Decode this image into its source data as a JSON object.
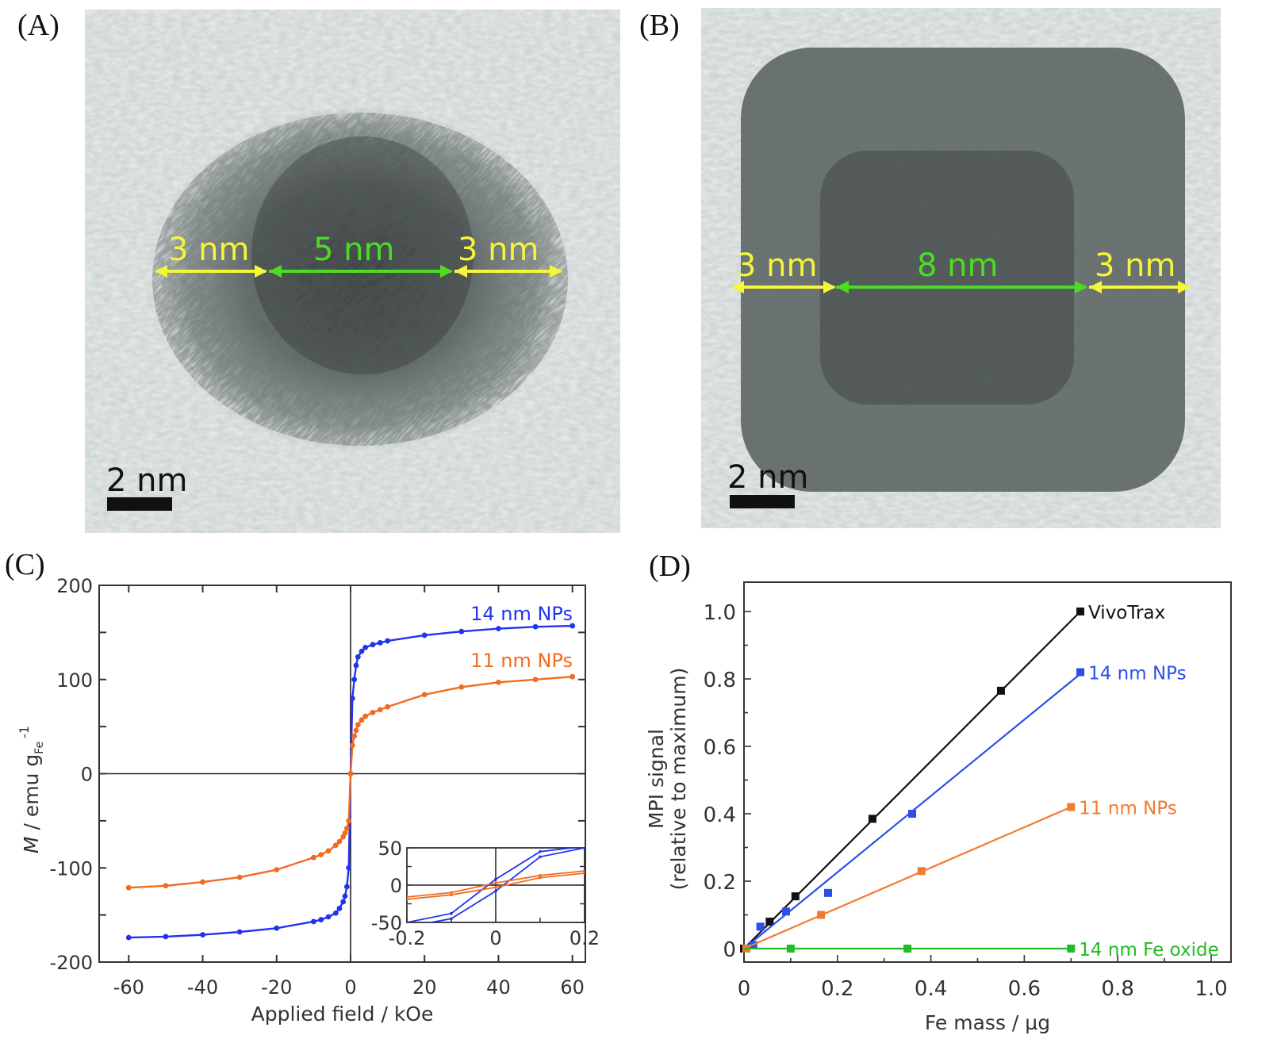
{
  "panels": {
    "a": {
      "label": "(A)",
      "scale_bar": "2 nm",
      "measurements": [
        {
          "text": "3 nm",
          "color": "#ffff33"
        },
        {
          "text": "5 nm",
          "color": "#44dd22"
        },
        {
          "text": "3 nm",
          "color": "#ffff33"
        }
      ]
    },
    "b": {
      "label": "(B)",
      "scale_bar": "2 nm",
      "measurements": [
        {
          "text": "3 nm",
          "color": "#ffff33"
        },
        {
          "text": "8 nm",
          "color": "#44dd22"
        },
        {
          "text": "3 nm",
          "color": "#ffff33"
        }
      ]
    },
    "c": {
      "label": "(C)"
    },
    "d": {
      "label": "(D)"
    }
  },
  "chart_data": [
    {
      "type": "line",
      "id": "C",
      "xlabel": "Applied field / kOe",
      "ylabel": "M / emu g_Fe^-1",
      "ylabel_parts": {
        "main": "M / emu g",
        "sub": "Fe",
        "sup": "-1"
      },
      "xlim": [
        -68,
        63.5
      ],
      "ylim": [
        -200,
        200
      ],
      "xticks": [
        -60,
        -40,
        -20,
        0,
        20,
        40,
        60
      ],
      "yticks": [
        -200,
        -100,
        0,
        100,
        200
      ],
      "grid": false,
      "series": [
        {
          "name": "14 nm NPs",
          "color": "#2233ee",
          "x": [
            -60,
            -50,
            -40,
            -30,
            -20,
            -10,
            -8,
            -6,
            -4,
            -3,
            -2,
            -1.5,
            -1,
            -0.5,
            0,
            0.5,
            1,
            1.5,
            2,
            3,
            4,
            6,
            8,
            10,
            20,
            30,
            40,
            50,
            60
          ],
          "y": [
            -174,
            -173,
            -171,
            -168,
            -164,
            -157,
            -155,
            -152,
            -148,
            -143,
            -136,
            -130,
            -120,
            -100,
            0,
            80,
            100,
            115,
            124,
            130,
            134,
            137,
            139,
            141,
            147,
            151,
            154,
            156,
            157
          ]
        },
        {
          "name": "11 nm NPs",
          "color": "#f26b21",
          "x": [
            -60,
            -50,
            -40,
            -30,
            -20,
            -10,
            -8,
            -6,
            -4,
            -3,
            -2,
            -1.5,
            -1,
            -0.5,
            0,
            0.5,
            1,
            1.5,
            2,
            3,
            4,
            6,
            8,
            10,
            20,
            30,
            40,
            50,
            60
          ],
          "y": [
            -121,
            -119,
            -115,
            -110,
            -102,
            -89,
            -86,
            -82,
            -76,
            -72,
            -67,
            -63,
            -58,
            -50,
            0,
            30,
            40,
            46,
            52,
            57,
            61,
            65,
            68,
            71,
            84,
            92,
            97,
            100,
            103
          ]
        }
      ],
      "annotations": [
        {
          "text": "14 nm NPs",
          "color": "#2233ee"
        },
        {
          "text": "11 nm NPs",
          "color": "#f26b21"
        }
      ],
      "inset": {
        "xlim": [
          -0.2,
          0.2
        ],
        "ylim": [
          -50,
          50
        ],
        "xticks": [
          -0.2,
          0,
          0.2
        ],
        "yticks": [
          -50,
          0,
          50
        ],
        "xtick_labels": [
          "-0.2",
          "0",
          "0.2"
        ],
        "ytick_labels": [
          "-50",
          "0",
          "50"
        ],
        "series": [
          {
            "name": "14 nm NPs upper branch",
            "color": "#2233ee",
            "x": [
              -0.2,
              -0.1,
              0,
              0.1,
              0.2
            ],
            "y": [
              -50,
              -38,
              8,
              45,
              52
            ]
          },
          {
            "name": "14 nm NPs lower branch",
            "color": "#2233ee",
            "x": [
              -0.2,
              -0.1,
              0,
              0.1,
              0.2
            ],
            "y": [
              -56,
              -45,
              -8,
              38,
              50
            ]
          },
          {
            "name": "11 nm NPs upper branch",
            "color": "#f26b21",
            "x": [
              -0.2,
              -0.1,
              0,
              0.1,
              0.2
            ],
            "y": [
              -16,
              -10,
              3,
              13,
              19
            ]
          },
          {
            "name": "11 nm NPs lower branch",
            "color": "#f26b21",
            "x": [
              -0.2,
              -0.1,
              0,
              0.1,
              0.2
            ],
            "y": [
              -19,
              -13,
              -3,
              10,
              16
            ]
          }
        ]
      }
    },
    {
      "type": "line",
      "id": "D",
      "xlabel": "Fe mass / µg",
      "ylabel": "MPI signal",
      "ylabel2": "(relative to maximum)",
      "xlim": [
        0,
        1.0
      ],
      "ylim": [
        -0.04,
        1.1
      ],
      "xticks": [
        0,
        0.2,
        0.4,
        0.6,
        0.8,
        1.0
      ],
      "xtick_labels": [
        "0",
        "0.2",
        "0.4",
        "0.6",
        "0.8",
        "1.0"
      ],
      "yticks": [
        0,
        0.2,
        0.4,
        0.6,
        0.8,
        1.0
      ],
      "ytick_labels": [
        "0",
        "0.2",
        "0.4",
        "0.6",
        "0.8",
        "1.0"
      ],
      "grid": false,
      "series": [
        {
          "name": "VivoTrax",
          "color": "#111111",
          "x": [
            0,
            0.055,
            0.11,
            0.275,
            0.55,
            0.72
          ],
          "y": [
            0,
            0.08,
            0.155,
            0.385,
            0.765,
            1.0
          ],
          "fit": [
            [
              0,
              0
            ],
            [
              0.72,
              1.0
            ]
          ]
        },
        {
          "name": "14 nm NPs",
          "color": "#2b4fe8",
          "x": [
            0.02,
            0.035,
            0.09,
            0.18,
            0.36,
            0.72
          ],
          "y": [
            0.01,
            0.065,
            0.11,
            0.165,
            0.4,
            0.82
          ],
          "fit": [
            [
              0,
              0
            ],
            [
              0.72,
              0.815
            ]
          ]
        },
        {
          "name": "11 nm NPs",
          "color": "#f27a30",
          "x": [
            0.005,
            0.165,
            0.38,
            0.7
          ],
          "y": [
            0.0,
            0.1,
            0.23,
            0.42
          ],
          "fit": [
            [
              0,
              0
            ],
            [
              0.7,
              0.42
            ]
          ]
        },
        {
          "name": "14 nm Fe oxide",
          "color": "#22bb22",
          "x": [
            0.1,
            0.35,
            0.7
          ],
          "y": [
            0,
            0,
            0
          ],
          "fit": [
            [
              0,
              0
            ],
            [
              0.7,
              0
            ]
          ]
        }
      ]
    }
  ]
}
